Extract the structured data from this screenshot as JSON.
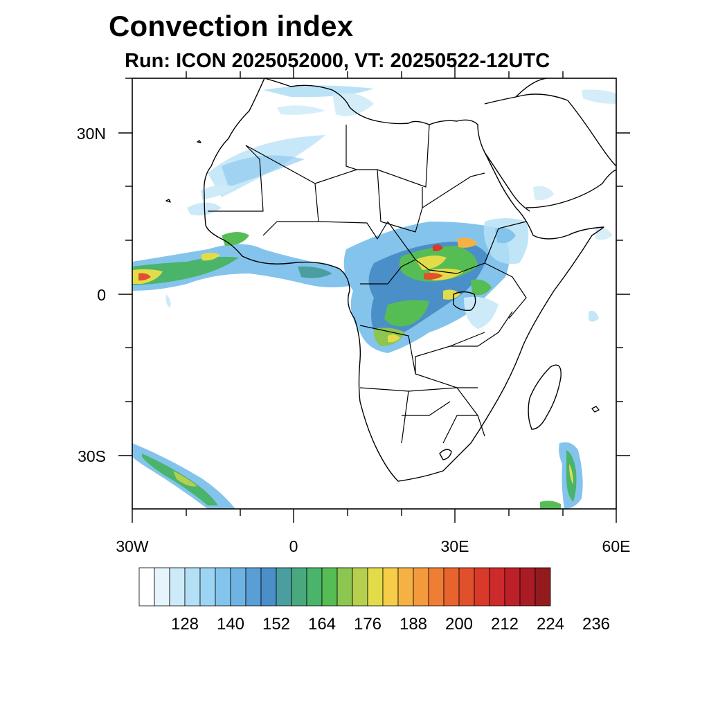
{
  "header": {
    "title": "Convection index",
    "subtitle": "Run: ICON 2025052000,  VT: 20250522-12UTC"
  },
  "map": {
    "region": "Africa",
    "lon_range": [
      -30,
      60
    ],
    "lat_range": [
      -40,
      40
    ],
    "lat_labels": [
      "30N",
      "0",
      "30S"
    ],
    "lon_labels": [
      "30W",
      "0",
      "30E",
      "60E"
    ]
  },
  "colorbar": {
    "labels": [
      "128",
      "140",
      "152",
      "164",
      "176",
      "188",
      "200",
      "212",
      "224",
      "236"
    ],
    "colors": [
      "#ffffff",
      "#e6f4fc",
      "#cdeaf8",
      "#b4e0f6",
      "#9cd5f3",
      "#84c4ec",
      "#6fb3e3",
      "#5a9ed6",
      "#4a8fc7",
      "#4a9ea0",
      "#49a87e",
      "#4ab46a",
      "#56bd55",
      "#8cc54f",
      "#b5cf4e",
      "#e3dc4a",
      "#f5cd48",
      "#f6b144",
      "#f39a3d",
      "#ef7d35",
      "#e9632f",
      "#e1502c",
      "#d9392b",
      "#cc2a2b",
      "#bd2128",
      "#aa1c24",
      "#931b1e"
    ]
  }
}
